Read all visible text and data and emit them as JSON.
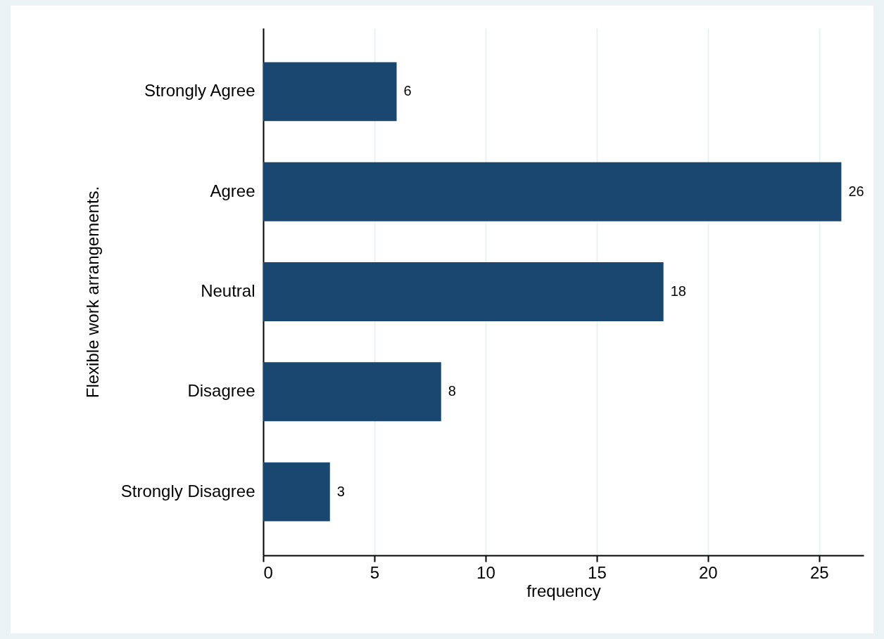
{
  "chart_data": {
    "type": "bar",
    "orientation": "horizontal",
    "xlabel": "frequency",
    "ylabel": "Flexible work arrangements.",
    "categories": [
      "Strongly Agree",
      "Agree",
      "Neutral",
      "Disagree",
      "Strongly Disagree"
    ],
    "values": [
      6,
      26,
      18,
      8,
      3
    ],
    "color": "#1a476f",
    "xlim": [
      0,
      27
    ],
    "xticks": [
      0,
      5,
      10,
      15,
      20,
      25
    ],
    "grid": "x",
    "data_labels": true
  }
}
